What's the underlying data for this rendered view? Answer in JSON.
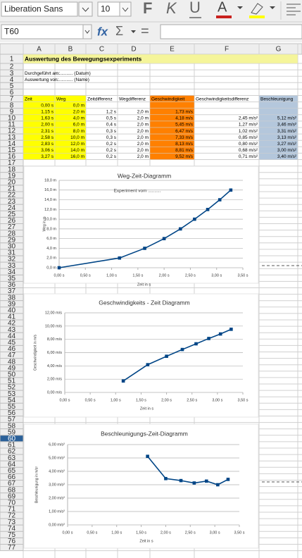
{
  "toolbar": {
    "font_name": "Liberation Sans",
    "font_size": "10",
    "bold": "F",
    "italic": "K",
    "underline": "U",
    "font_color": "A"
  },
  "formula_bar": {
    "name_box": "T60",
    "function_wizard": "fx",
    "sum": "Σ",
    "equals": "="
  },
  "sheet": {
    "columns": [
      "A",
      "B",
      "C",
      "D",
      "E",
      "F",
      "G"
    ],
    "rows": [
      1,
      2,
      3,
      4,
      5,
      6,
      7,
      8,
      9,
      10,
      11,
      12,
      13,
      14,
      15,
      16,
      17,
      18,
      19,
      20,
      21,
      22,
      23,
      24,
      25,
      26,
      27,
      28,
      29,
      30,
      31,
      32,
      33,
      34,
      35,
      36,
      37,
      38,
      39,
      40,
      41,
      42,
      43,
      44,
      45,
      46,
      47,
      48,
      49,
      50,
      51,
      52,
      53,
      54,
      55,
      56,
      57,
      58,
      59,
      60,
      61,
      62,
      63,
      64,
      65,
      66,
      67,
      68,
      69,
      70,
      71,
      72,
      73,
      74,
      75,
      76,
      77
    ],
    "selected_row": 60
  },
  "table": {
    "title": "Auswertung des Bewegungsexperiments",
    "meta": [
      [
        "Durchgeführt am:",
        "............. (Datum)"
      ],
      [
        "Auswertung von:",
        "............. (Name)"
      ]
    ],
    "header": [
      "Zeit",
      "Weg",
      "Zeitdifferenz",
      "Wegdifferenz",
      "Geschwindigkeit",
      "Geschwindigkeitsdifferenz",
      "Beschleunigung"
    ],
    "rows": [
      [
        "0,00 s",
        "0,0 m",
        null,
        null,
        null,
        null,
        null
      ],
      [
        "1,15 s",
        "2,0 m",
        "1,2 s",
        "2,0 m",
        "1,73 m/s",
        null,
        null
      ],
      [
        "1,63 s",
        "4,0 m",
        "0,5 s",
        "2,0 m",
        "4,18 m/s",
        "2,45 m/s²",
        "5,12 m/s²"
      ],
      [
        "2,00 s",
        "6,0 m",
        "0,4 s",
        "2,0 m",
        "5,45 m/s",
        "1,27 m/s²",
        "3,46 m/s²"
      ],
      [
        "2,31 s",
        "8,0 m",
        "0,3 s",
        "2,0 m",
        "6,47 m/s",
        "1,02 m/s²",
        "3,31 m/s²"
      ],
      [
        "2,58 s",
        "10,0 m",
        "0,3 s",
        "2,0 m",
        "7,33 m/s",
        "0,85 m/s²",
        "3,13 m/s²"
      ],
      [
        "2,83 s",
        "12,0 m",
        "0,2 s",
        "2,0 m",
        "8,13 m/s",
        "0,80 m/s²",
        "3,27 m/s²"
      ],
      [
        "3,06 s",
        "14,0 m",
        "0,2 s",
        "2,0 m",
        "8,81 m/s",
        "0,68 m/s²",
        "3,00 m/s²"
      ],
      [
        "3,27 s",
        "16,0 m",
        "0,2 s",
        "2,0 m",
        "9,52 m/s",
        "0,71 m/s²",
        "3,40 m/s²"
      ]
    ]
  },
  "chart_data": [
    {
      "type": "line",
      "title": "Weg-Zeit-Diagramm",
      "subtitle": "Experiment vom ..........",
      "x_label": "Zeit in s",
      "y_label": "Weg in m",
      "x": [
        0,
        1.15,
        1.63,
        2.0,
        2.31,
        2.58,
        2.83,
        3.06,
        3.27
      ],
      "values": [
        0,
        2,
        4,
        6,
        8,
        10,
        12,
        14,
        16
      ],
      "color": "#004586",
      "marker": "square",
      "grid": true,
      "xlim": [
        0,
        3.5
      ],
      "xticks": [
        {
          "value": 0,
          "label": "0,00 s"
        },
        {
          "value": 0.5,
          "label": "0,50 s"
        },
        {
          "value": 1,
          "label": "1,00 s"
        },
        {
          "value": 1.5,
          "label": "1,50 s"
        },
        {
          "value": 2,
          "label": "2,00 s"
        },
        {
          "value": 2.5,
          "label": "2,50 s"
        },
        {
          "value": 3,
          "label": "3,00 s"
        },
        {
          "value": 3.5,
          "label": "3,50 s"
        }
      ],
      "ylim": [
        0,
        18
      ],
      "yticks": [
        {
          "value": 0,
          "label": "0,0 m"
        },
        {
          "value": 2,
          "label": "2,0 m"
        },
        {
          "value": 4,
          "label": "4,0 m"
        },
        {
          "value": 6,
          "label": "6,0 m"
        },
        {
          "value": 8,
          "label": "8,0 m"
        },
        {
          "value": 10,
          "label": "10,0 m"
        },
        {
          "value": 12,
          "label": "12,0 m"
        },
        {
          "value": 14,
          "label": "14,0 m"
        },
        {
          "value": 16,
          "label": "16,0 m"
        },
        {
          "value": 18,
          "label": "18,0 m"
        }
      ]
    },
    {
      "type": "line",
      "title": "Geschwindigkeits - Zeit Diagramm",
      "x_label": "Zeit in s",
      "y_label": "Geschwindigkeit in m/s",
      "x": [
        1.15,
        1.63,
        2.0,
        2.31,
        2.58,
        2.83,
        3.06,
        3.27
      ],
      "values": [
        1.73,
        4.18,
        5.45,
        6.47,
        7.33,
        8.13,
        8.81,
        9.52
      ],
      "color": "#004586",
      "marker": "square",
      "grid": true,
      "xlim": [
        0,
        3.5
      ],
      "xticks": [
        {
          "value": 0,
          "label": "0,00 s"
        },
        {
          "value": 0.5,
          "label": "0,50 s"
        },
        {
          "value": 1,
          "label": "1,00 s"
        },
        {
          "value": 1.5,
          "label": "1,50 s"
        },
        {
          "value": 2,
          "label": "2,00 s"
        },
        {
          "value": 2.5,
          "label": "2,50 s"
        },
        {
          "value": 3,
          "label": "3,00 s"
        },
        {
          "value": 3.5,
          "label": "3,50 s"
        }
      ],
      "ylim": [
        0,
        12
      ],
      "yticks": [
        {
          "value": 0,
          "label": "0,00 m/s"
        },
        {
          "value": 2,
          "label": "2,00 m/s"
        },
        {
          "value": 4,
          "label": "4,00 m/s"
        },
        {
          "value": 6,
          "label": "6,00 m/s"
        },
        {
          "value": 8,
          "label": "8,00 m/s"
        },
        {
          "value": 10,
          "label": "10,00 m/s"
        },
        {
          "value": 12,
          "label": "12,00 m/s"
        }
      ]
    },
    {
      "type": "line",
      "title": "Beschleunigungs-Zeit-Diagramm",
      "x_label": "Zeit in s",
      "y_label": "Beschleunigung in m/s²",
      "x": [
        1.63,
        2.0,
        2.31,
        2.58,
        2.83,
        3.06,
        3.27
      ],
      "values": [
        5.12,
        3.46,
        3.31,
        3.13,
        3.27,
        3.0,
        3.4
      ],
      "color": "#004586",
      "marker": "square",
      "grid": true,
      "xlim": [
        0,
        3.5
      ],
      "xticks": [
        {
          "value": 0,
          "label": "0,00 s"
        },
        {
          "value": 0.5,
          "label": "0,50 s"
        },
        {
          "value": 1,
          "label": "1,00 s"
        },
        {
          "value": 1.5,
          "label": "1,50 s"
        },
        {
          "value": 2,
          "label": "2,00 s"
        },
        {
          "value": 2.5,
          "label": "2,50 s"
        },
        {
          "value": 3,
          "label": "3,00 s"
        },
        {
          "value": 3.5,
          "label": "3,50 s"
        }
      ],
      "ylim": [
        0,
        6
      ],
      "yticks": [
        {
          "value": 0,
          "label": "0,00 m/s²"
        },
        {
          "value": 1,
          "label": "1,00 m/s²"
        },
        {
          "value": 2,
          "label": "2,00 m/s²"
        },
        {
          "value": 3,
          "label": "3,00 m/s²"
        },
        {
          "value": 4,
          "label": "4,00 m/s²"
        },
        {
          "value": 5,
          "label": "5,00 m/s²"
        },
        {
          "value": 6,
          "label": "6,00 m/s²"
        }
      ]
    }
  ]
}
